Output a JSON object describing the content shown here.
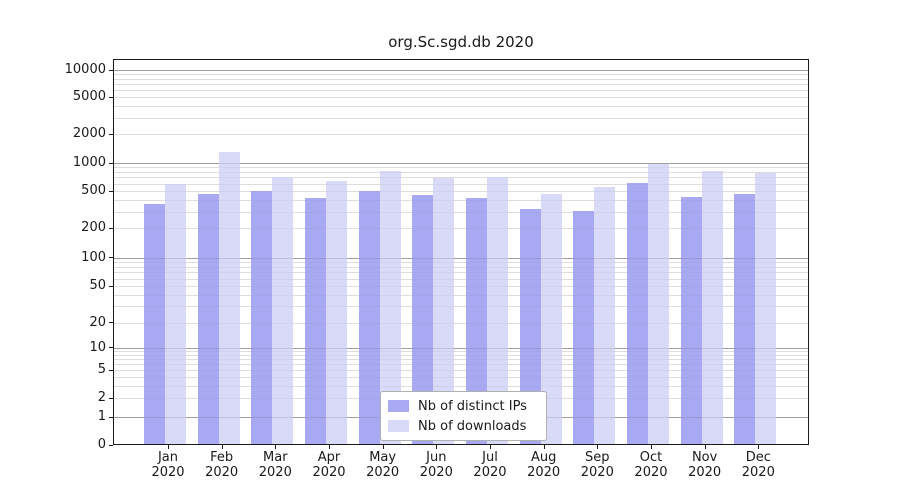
{
  "chart_data": {
    "type": "bar",
    "title": "org.Sc.sgd.db 2020",
    "yscale": "log-with-zero-baseline",
    "months": [
      "Jan",
      "Feb",
      "Mar",
      "Apr",
      "May",
      "Jun",
      "Jul",
      "Aug",
      "Sep",
      "Oct",
      "Nov",
      "Dec"
    ],
    "year_label": "2020",
    "y_tick_labels": [
      "0",
      "1",
      "2",
      "5",
      "10",
      "20",
      "50",
      "100",
      "200",
      "500",
      "1000",
      "2000",
      "5000",
      "10000"
    ],
    "ylim": [
      0,
      13000
    ],
    "grid": "horizontal, light minors with darker lines at powers of ten",
    "legend_position": "inside bottom-center",
    "series": [
      {
        "name": "Nb of distinct IPs",
        "color": "#a8a8f3",
        "values": [
          365,
          460,
          500,
          420,
          500,
          450,
          420,
          320,
          305,
          610,
          435,
          460
        ]
      },
      {
        "name": "Nb of downloads",
        "color": "#d9d9f8",
        "values": [
          600,
          1300,
          715,
          645,
          820,
          695,
          700,
          465,
          550,
          975,
          830,
          785
        ]
      }
    ]
  }
}
